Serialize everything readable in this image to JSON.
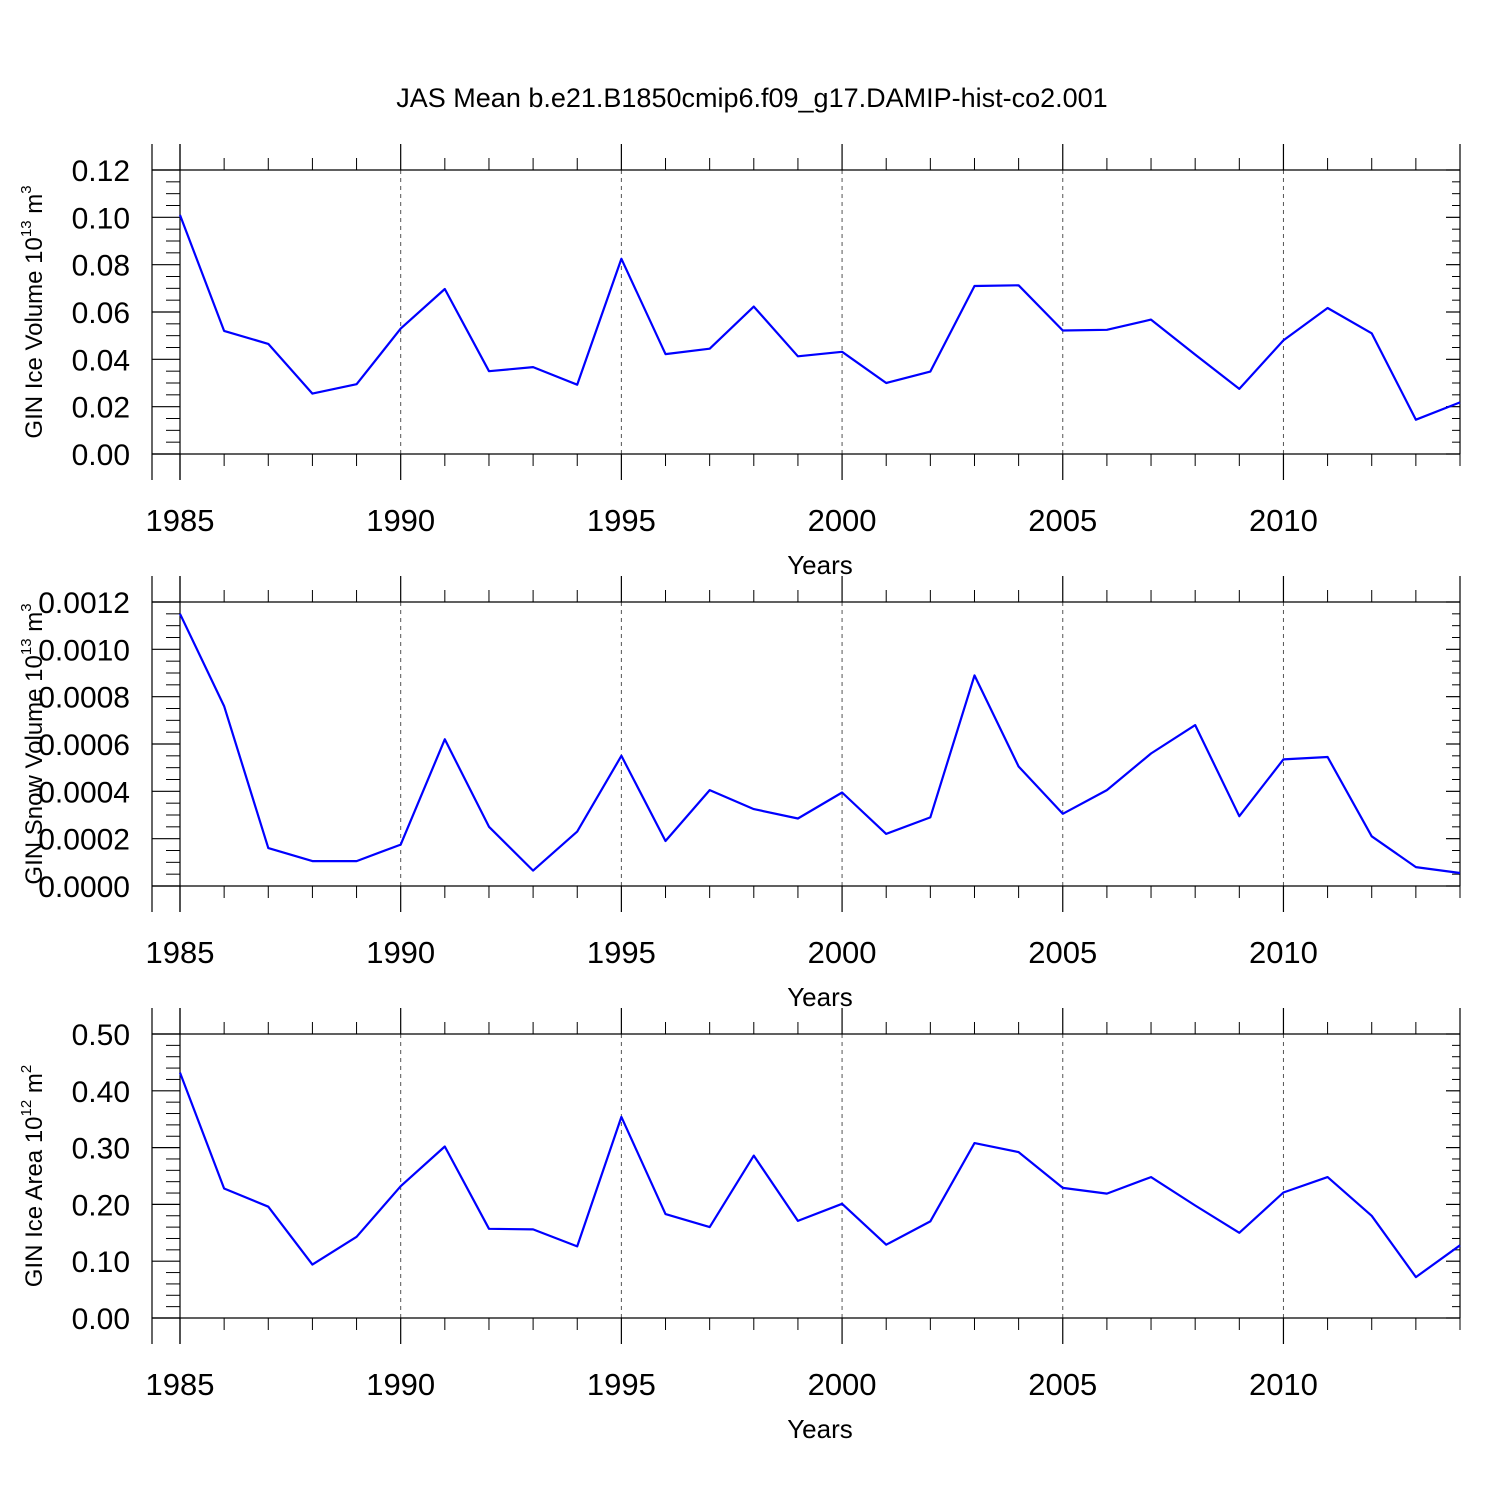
{
  "figure": {
    "title": "JAS Mean b.e21.B1850cmip6.f09_g17.DAMIP-hist-co2.001"
  },
  "chart_data": [
    {
      "type": "line",
      "title": "",
      "xlabel": "Years",
      "ylabel": {
        "base": "GIN Ice Volume 10",
        "exp": "13",
        "mid": " m",
        "unit_exp": "3"
      },
      "xlim": [
        1985,
        2014
      ],
      "ylim": [
        0,
        0.12
      ],
      "x_ticks": [
        1985,
        1990,
        1995,
        2000,
        2005,
        2010
      ],
      "x_tick_labels": [
        "1985",
        "1990",
        "1995",
        "2000",
        "2005",
        "2010"
      ],
      "y_ticks": [
        0,
        0.02,
        0.04,
        0.06,
        0.08,
        0.1,
        0.12
      ],
      "y_tick_labels": [
        "0.00",
        "0.02",
        "0.04",
        "0.06",
        "0.08",
        "0.10",
        "0.12"
      ],
      "grid": "vertical dashed at major x ticks",
      "line_color": "#0000ff",
      "series": [
        {
          "x": [
            1985,
            1986,
            1987,
            1988,
            1989,
            1990,
            1991,
            1992,
            1993,
            1994,
            1995,
            1996,
            1997,
            1998,
            1999,
            2000,
            2001,
            2002,
            2003,
            2004,
            2005,
            2006,
            2007,
            2008,
            2009,
            2010,
            2011,
            2012,
            2013,
            2014
          ],
          "values": [
            0.101,
            0.052,
            0.0465,
            0.0255,
            0.0295,
            0.053,
            0.0697,
            0.035,
            0.0367,
            0.0293,
            0.0825,
            0.0422,
            0.0445,
            0.0623,
            0.0413,
            0.0432,
            0.03,
            0.0348,
            0.071,
            0.0713,
            0.0522,
            0.0525,
            0.0568,
            0.042,
            0.0275,
            0.048,
            0.0617,
            0.051,
            0.0145,
            0.0218
          ]
        }
      ]
    },
    {
      "type": "line",
      "title": "",
      "xlabel": "Years",
      "ylabel": {
        "base": "GIN Snow Volume 10",
        "exp": "13",
        "mid": " m",
        "unit_exp": "3"
      },
      "xlim": [
        1985,
        2014
      ],
      "ylim": [
        0,
        0.0012
      ],
      "x_ticks": [
        1985,
        1990,
        1995,
        2000,
        2005,
        2010
      ],
      "x_tick_labels": [
        "1985",
        "1990",
        "1995",
        "2000",
        "2005",
        "2010"
      ],
      "y_ticks": [
        0,
        0.0002,
        0.0004,
        0.0006,
        0.0008,
        0.001,
        0.0012
      ],
      "y_tick_labels": [
        "0.0000",
        "0.0002",
        "0.0004",
        "0.0006",
        "0.0008",
        "0.0010",
        "0.0012"
      ],
      "grid": "vertical dashed at major x ticks",
      "line_color": "#0000ff",
      "series": [
        {
          "x": [
            1985,
            1986,
            1987,
            1988,
            1989,
            1990,
            1991,
            1992,
            1993,
            1994,
            1995,
            1996,
            1997,
            1998,
            1999,
            2000,
            2001,
            2002,
            2003,
            2004,
            2005,
            2006,
            2007,
            2008,
            2009,
            2010,
            2011,
            2012,
            2013,
            2014
          ],
          "values": [
            0.00115,
            0.00076,
            0.00016,
            0.000105,
            0.000105,
            0.000175,
            0.00062,
            0.00025,
            6.5e-05,
            0.00023,
            0.00055,
            0.00019,
            0.000405,
            0.000325,
            0.000285,
            0.000395,
            0.00022,
            0.00029,
            0.00089,
            0.000505,
            0.000305,
            0.000405,
            0.00056,
            0.00068,
            0.000295,
            0.000535,
            0.000545,
            0.00021,
            8e-05,
            5.5e-05
          ]
        }
      ]
    },
    {
      "type": "line",
      "title": "",
      "xlabel": "Years",
      "ylabel": {
        "base": "GIN Ice Area 10",
        "exp": "12",
        "mid": " m",
        "unit_exp": "2"
      },
      "xlim": [
        1985,
        2014
      ],
      "ylim": [
        0,
        0.5
      ],
      "x_ticks": [
        1985,
        1990,
        1995,
        2000,
        2005,
        2010
      ],
      "x_tick_labels": [
        "1985",
        "1990",
        "1995",
        "2000",
        "2005",
        "2010"
      ],
      "y_ticks": [
        0,
        0.1,
        0.2,
        0.3,
        0.4,
        0.5
      ],
      "y_tick_labels": [
        "0.00",
        "0.10",
        "0.20",
        "0.30",
        "0.40",
        "0.50"
      ],
      "grid": "vertical dashed at major x ticks",
      "line_color": "#0000ff",
      "series": [
        {
          "x": [
            1985,
            1986,
            1987,
            1988,
            1989,
            1990,
            1991,
            1992,
            1993,
            1994,
            1995,
            1996,
            1997,
            1998,
            1999,
            2000,
            2001,
            2002,
            2003,
            2004,
            2005,
            2006,
            2007,
            2008,
            2009,
            2010,
            2011,
            2012,
            2013,
            2014
          ],
          "values": [
            0.432,
            0.228,
            0.196,
            0.094,
            0.143,
            0.232,
            0.302,
            0.157,
            0.156,
            0.126,
            0.354,
            0.183,
            0.16,
            0.286,
            0.171,
            0.201,
            0.129,
            0.17,
            0.308,
            0.292,
            0.229,
            0.219,
            0.248,
            0.198,
            0.15,
            0.221,
            0.248,
            0.18,
            0.072,
            0.128
          ]
        }
      ]
    }
  ]
}
